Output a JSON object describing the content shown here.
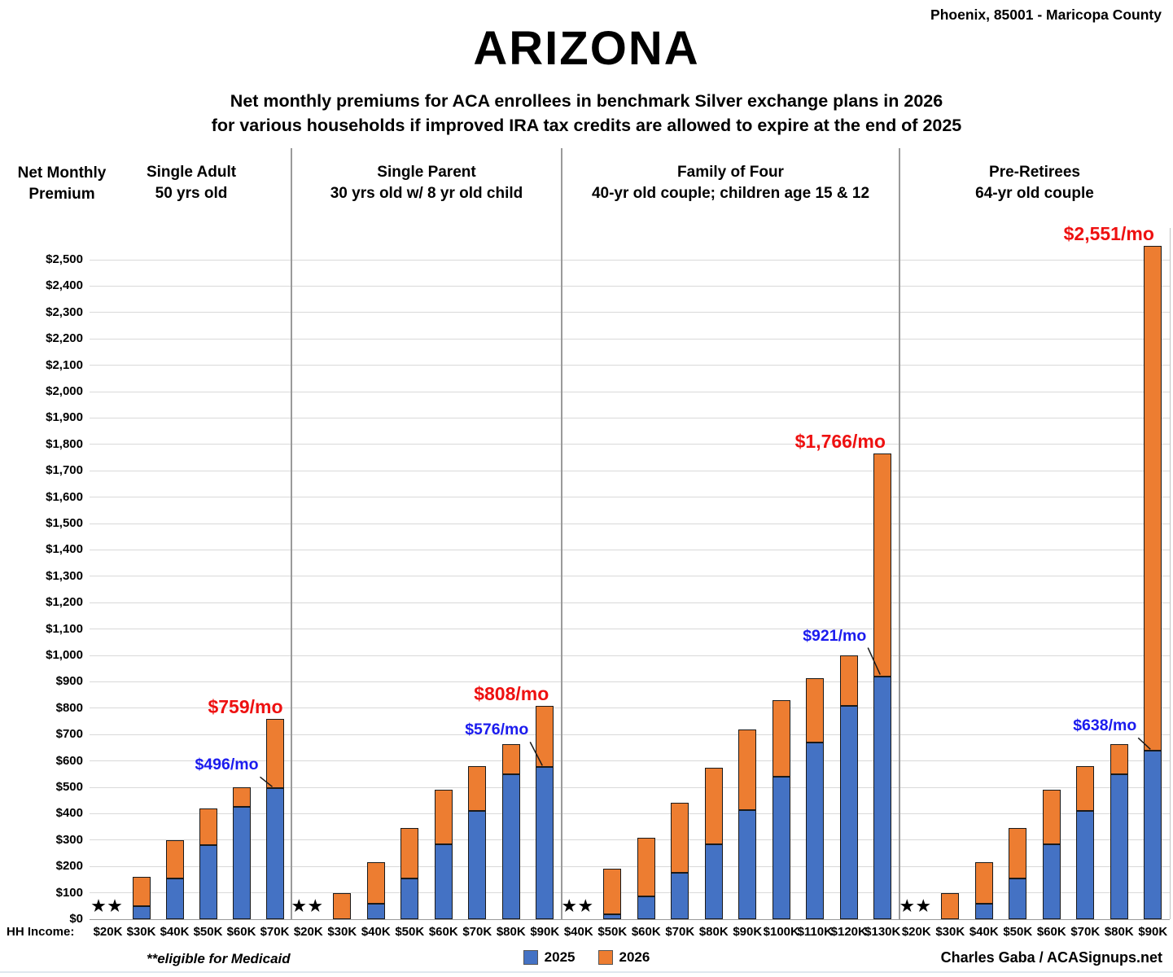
{
  "header": {
    "location": "Phoenix, 85001 - Maricopa County",
    "title": "ARIZONA",
    "subtitle_line1": "Net monthly premiums for ACA enrollees in benchmark Silver exchange plans in 2026",
    "subtitle_line2": "for various households if improved IRA tax credits are allowed to expire at the end of 2025"
  },
  "axis": {
    "y_title": "Net Monthly Premium",
    "x_title": "HH Income:"
  },
  "footer": {
    "medicaid_note": "**eligible for Medicaid",
    "credit": "Charles Gaba / ACASignups.net"
  },
  "colors": {
    "bar_2025": "#4472C4",
    "bar_2026": "#ED7D31",
    "callout_2025": "#1b1bee",
    "callout_2026": "#ee1111",
    "gridline": "#d9d9d9",
    "bar_border": "#1a1a1a"
  },
  "legend": {
    "items": [
      {
        "label": "2025",
        "color": "#4472C4"
      },
      {
        "label": "2026",
        "color": "#ED7D31"
      }
    ]
  },
  "medicaid_marker": "★★",
  "chart_data": {
    "type": "bar",
    "title": "ARIZONA",
    "subtitle": "Net monthly premiums for ACA enrollees in benchmark Silver exchange plans in 2026 for various households if improved IRA tax credits are allowed to expire at the end of 2025",
    "xlabel": "HH Income:",
    "ylabel": "Net Monthly Premium",
    "ylim": [
      0,
      2500
    ],
    "ytick_step": 100,
    "ytick_labels": [
      "$0",
      "$100",
      "$200",
      "$300",
      "$400",
      "$500",
      "$600",
      "$700",
      "$800",
      "$900",
      "$1,000",
      "$1,100",
      "$1,200",
      "$1,300",
      "$1,400",
      "$1,500",
      "$1,600",
      "$1,700",
      "$1,800",
      "$1,900",
      "$2,000",
      "$2,100",
      "$2,200",
      "$2,300",
      "$2,400",
      "$2,500"
    ],
    "grid": true,
    "legend_position": "bottom-center",
    "note": "Stacked overlay: blue = 2025 net premium, orange extends from 2025 value up to 2026 total; ** / null = eligible for Medicaid; values estimated from gridlines except labeled callouts",
    "groups": [
      {
        "title": "Single Adult",
        "subtitle": "50 yrs old",
        "categories": [
          "$20K",
          "$30K",
          "$40K",
          "$50K",
          "$60K",
          "$70K"
        ],
        "medicaid_flags": [
          true,
          false,
          false,
          false,
          false,
          false
        ],
        "series": [
          {
            "name": "2025",
            "color": "#4472C4",
            "values": [
              null,
              50,
              155,
              280,
              425,
              496
            ]
          },
          {
            "name": "2026",
            "color": "#ED7D31",
            "values": [
              null,
              160,
              300,
              420,
              500,
              759
            ]
          }
        ],
        "callouts": {
          "blue": {
            "index": 5,
            "text": "$496/mo"
          },
          "red": {
            "index": 5,
            "text": "$759/mo"
          }
        }
      },
      {
        "title": "Single Parent",
        "subtitle": "30 yrs old w/ 8 yr old child",
        "categories": [
          "$20K",
          "$30K",
          "$40K",
          "$50K",
          "$60K",
          "$70K",
          "$80K",
          "$90K"
        ],
        "medicaid_flags": [
          true,
          false,
          false,
          false,
          false,
          false,
          false,
          false
        ],
        "series": [
          {
            "name": "2025",
            "color": "#4472C4",
            "values": [
              null,
              0,
              60,
              155,
              285,
              410,
              550,
              576
            ]
          },
          {
            "name": "2026",
            "color": "#ED7D31",
            "values": [
              null,
              100,
              215,
              345,
              490,
              580,
              665,
              808
            ]
          }
        ],
        "callouts": {
          "blue": {
            "index": 7,
            "text": "$576/mo"
          },
          "red": {
            "index": 7,
            "text": "$808/mo"
          }
        }
      },
      {
        "title": "Family of Four",
        "subtitle": "40-yr old couple; children age 15 & 12",
        "categories": [
          "$40K",
          "$50K",
          "$60K",
          "$70K",
          "$80K",
          "$90K",
          "$100K",
          "$110K",
          "$120K",
          "$130K"
        ],
        "medicaid_flags": [
          true,
          false,
          false,
          false,
          false,
          false,
          false,
          false,
          false,
          false
        ],
        "series": [
          {
            "name": "2025",
            "color": "#4472C4",
            "values": [
              null,
              20,
              85,
              175,
              285,
              415,
              540,
              670,
              810,
              921
            ]
          },
          {
            "name": "2026",
            "color": "#ED7D31",
            "values": [
              null,
              190,
              310,
              440,
              575,
              720,
              830,
              915,
              1000,
              1766
            ]
          }
        ],
        "callouts": {
          "blue": {
            "index": 9,
            "text": "$921/mo"
          },
          "red": {
            "index": 9,
            "text": "$1,766/mo"
          }
        }
      },
      {
        "title": "Pre-Retirees",
        "subtitle": "64-yr old couple",
        "categories": [
          "$20K",
          "$30K",
          "$40K",
          "$50K",
          "$60K",
          "$70K",
          "$80K",
          "$90K"
        ],
        "medicaid_flags": [
          true,
          false,
          false,
          false,
          false,
          false,
          false,
          false
        ],
        "series": [
          {
            "name": "2025",
            "color": "#4472C4",
            "values": [
              null,
              0,
              60,
              155,
              285,
              410,
              550,
              638
            ]
          },
          {
            "name": "2026",
            "color": "#ED7D31",
            "values": [
              null,
              100,
              215,
              345,
              490,
              580,
              665,
              2551
            ]
          }
        ],
        "callouts": {
          "blue": {
            "index": 7,
            "text": "$638/mo"
          },
          "red": {
            "index": 7,
            "text": "$2,551/mo"
          }
        }
      }
    ]
  }
}
